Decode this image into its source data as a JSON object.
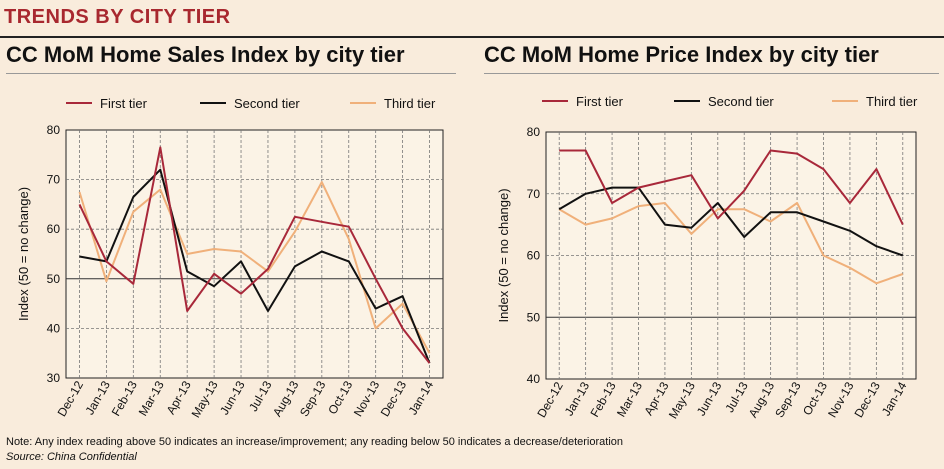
{
  "header": {
    "banner": "TRENDS BY CITY TIER"
  },
  "footer": {
    "note": "Note: Any index reading above 50 indicates an increase/improvement; any reading below 50 indicates a decrease/deterioration",
    "source": "Source: China Confidential"
  },
  "colors": {
    "first_tier": "#a8283a",
    "second_tier": "#111111",
    "third_tier": "#f0b07a",
    "plot_bg": "#fbf3e6",
    "grid": "#777777"
  },
  "chart_data": [
    {
      "type": "line",
      "title": "CC MoM Home Sales Index by city tier",
      "ylabel": "Index (50 = no change)",
      "ylim": [
        30,
        80
      ],
      "yticks": [
        30,
        40,
        50,
        60,
        70,
        80
      ],
      "grid": true,
      "legend_position": "top",
      "categories": [
        "Dec-12",
        "Jan-13",
        "Feb-13",
        "Mar-13",
        "Apr-13",
        "May-13",
        "Jun-13",
        "Jul-13",
        "Aug-13",
        "Sep-13",
        "Oct-13",
        "Nov-13",
        "Dec-13",
        "Jan-14"
      ],
      "series": [
        {
          "name": "First tier",
          "values": [
            65,
            53.5,
            49,
            76.5,
            43.5,
            51,
            47,
            52,
            62.5,
            61.5,
            60.5,
            50,
            40,
            33
          ]
        },
        {
          "name": "Second tier",
          "values": [
            54.5,
            53.5,
            66.5,
            72,
            51.5,
            48.5,
            53.5,
            43.5,
            52.5,
            55.5,
            53.5,
            44,
            46.5,
            33
          ]
        },
        {
          "name": "Third tier",
          "values": [
            67.5,
            49.5,
            63.5,
            68,
            55,
            56,
            55.5,
            51.5,
            59.5,
            69.5,
            58,
            40,
            45,
            35
          ]
        }
      ]
    },
    {
      "type": "line",
      "title": "CC MoM Home Price Index by city tier",
      "ylabel": "Index (50 = no change)",
      "ylim": [
        40,
        80
      ],
      "yticks": [
        40,
        50,
        60,
        70,
        80
      ],
      "grid": true,
      "legend_position": "top",
      "categories": [
        "Dec-12",
        "Jan-13",
        "Feb-13",
        "Mar-13",
        "Apr-13",
        "May-13",
        "Jun-13",
        "Jul-13",
        "Aug-13",
        "Sep-13",
        "Oct-13",
        "Nov-13",
        "Dec-13",
        "Jan-14"
      ],
      "series": [
        {
          "name": "First tier",
          "values": [
            77,
            77,
            68.5,
            71,
            72,
            73,
            66,
            70.5,
            77,
            76.5,
            74,
            68.5,
            74,
            65
          ]
        },
        {
          "name": "Second tier",
          "values": [
            67.5,
            70,
            71,
            71,
            65,
            64.5,
            68.5,
            63,
            67,
            67,
            65.5,
            64,
            61.5,
            60
          ]
        },
        {
          "name": "Third tier",
          "values": [
            67.5,
            65,
            66,
            68,
            68.5,
            63.5,
            67.5,
            67.5,
            65.5,
            68.5,
            60,
            58,
            55.5,
            57
          ]
        }
      ]
    }
  ]
}
